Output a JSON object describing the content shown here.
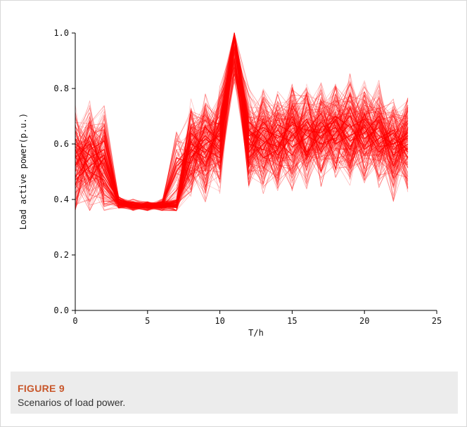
{
  "figure": {
    "label": "FIGURE 9",
    "caption": "Scenarios of load power."
  },
  "chart_data": {
    "type": "line",
    "xlabel": "T/h",
    "ylabel": "Load active power(p.u.)",
    "xlim": [
      0,
      25
    ],
    "ylim": [
      0.0,
      1.0
    ],
    "xticks": [
      "0",
      "5",
      "10",
      "15",
      "20",
      "25"
    ],
    "yticks": [
      "0.0",
      "0.2",
      "0.4",
      "0.6",
      "0.8",
      "1.0"
    ],
    "grid": false,
    "line_color": "#ff0000",
    "x": [
      0,
      1,
      2,
      3,
      4,
      5,
      6,
      7,
      8,
      9,
      10,
      11,
      12,
      13,
      14,
      15,
      16,
      17,
      18,
      19,
      20,
      21,
      22,
      23
    ],
    "scenario_count": 200,
    "series": [
      {
        "values": [
          0.55,
          0.6,
          0.52,
          0.38,
          0.37,
          0.38,
          0.38,
          0.37,
          0.55,
          0.6,
          0.63,
          0.98,
          0.63,
          0.66,
          0.62,
          0.67,
          0.65,
          0.64,
          0.7,
          0.66,
          0.69,
          0.63,
          0.6,
          0.62
        ]
      },
      {
        "values": [
          0.48,
          0.55,
          0.58,
          0.39,
          0.38,
          0.37,
          0.38,
          0.52,
          0.57,
          0.63,
          0.58,
          0.99,
          0.55,
          0.6,
          0.65,
          0.59,
          0.62,
          0.68,
          0.61,
          0.73,
          0.62,
          0.66,
          0.56,
          0.6
        ]
      },
      {
        "values": [
          0.62,
          0.5,
          0.47,
          0.38,
          0.39,
          0.38,
          0.37,
          0.38,
          0.61,
          0.52,
          0.68,
          0.98,
          0.62,
          0.55,
          0.58,
          0.7,
          0.57,
          0.63,
          0.66,
          0.58,
          0.71,
          0.6,
          0.64,
          0.55
        ]
      },
      {
        "values": [
          0.45,
          0.58,
          0.61,
          0.4,
          0.38,
          0.38,
          0.38,
          0.55,
          0.53,
          0.66,
          0.61,
          0.99,
          0.68,
          0.63,
          0.56,
          0.63,
          0.69,
          0.57,
          0.64,
          0.7,
          0.59,
          0.68,
          0.52,
          0.66
        ]
      },
      {
        "values": [
          0.58,
          0.47,
          0.55,
          0.38,
          0.38,
          0.37,
          0.39,
          0.37,
          0.64,
          0.58,
          0.55,
          0.98,
          0.58,
          0.68,
          0.61,
          0.56,
          0.65,
          0.71,
          0.6,
          0.63,
          0.66,
          0.57,
          0.62,
          0.58
        ]
      },
      {
        "values": [
          0.52,
          0.63,
          0.5,
          0.39,
          0.37,
          0.38,
          0.38,
          0.5,
          0.58,
          0.55,
          0.66,
          0.99,
          0.6,
          0.58,
          0.67,
          0.64,
          0.56,
          0.66,
          0.68,
          0.61,
          0.64,
          0.7,
          0.58,
          0.63
        ]
      },
      {
        "values": [
          0.47,
          0.52,
          0.56,
          0.38,
          0.38,
          0.38,
          0.37,
          0.38,
          0.55,
          0.62,
          0.57,
          0.98,
          0.65,
          0.61,
          0.59,
          0.68,
          0.63,
          0.6,
          0.62,
          0.67,
          0.58,
          0.62,
          0.65,
          0.57
        ]
      },
      {
        "values": [
          0.6,
          0.56,
          0.48,
          0.4,
          0.38,
          0.37,
          0.38,
          0.53,
          0.6,
          0.57,
          0.64,
          0.99,
          0.57,
          0.65,
          0.63,
          0.61,
          0.68,
          0.62,
          0.69,
          0.59,
          0.67,
          0.59,
          0.6,
          0.64
        ]
      }
    ]
  }
}
